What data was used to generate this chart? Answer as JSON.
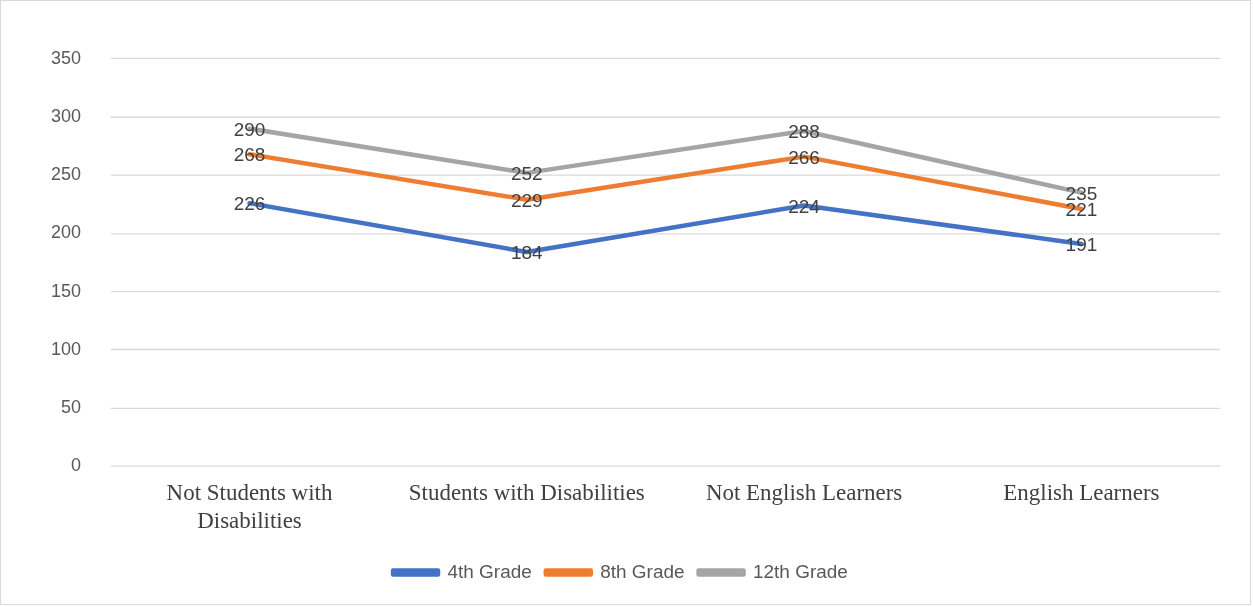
{
  "chart_data": {
    "type": "line",
    "categories": [
      "Not Students with Disabilities",
      "Students with Disabilities",
      "Not English Learners",
      "English Learners"
    ],
    "series": [
      {
        "name": "4th Grade",
        "color": "#4472c4",
        "values": [
          226,
          184,
          224,
          191
        ]
      },
      {
        "name": "8th Grade",
        "color": "#ed7d31",
        "values": [
          268,
          229,
          266,
          221
        ]
      },
      {
        "name": "12th Grade",
        "color": "#a5a5a5",
        "values": [
          290,
          252,
          288,
          235
        ]
      }
    ],
    "ylim": [
      0,
      350
    ],
    "yticks": [
      0,
      50,
      100,
      150,
      200,
      250,
      300,
      350
    ],
    "grid": "y",
    "legend": "bottom",
    "marker": "none",
    "line_style": "solid",
    "data_labels": true
  }
}
